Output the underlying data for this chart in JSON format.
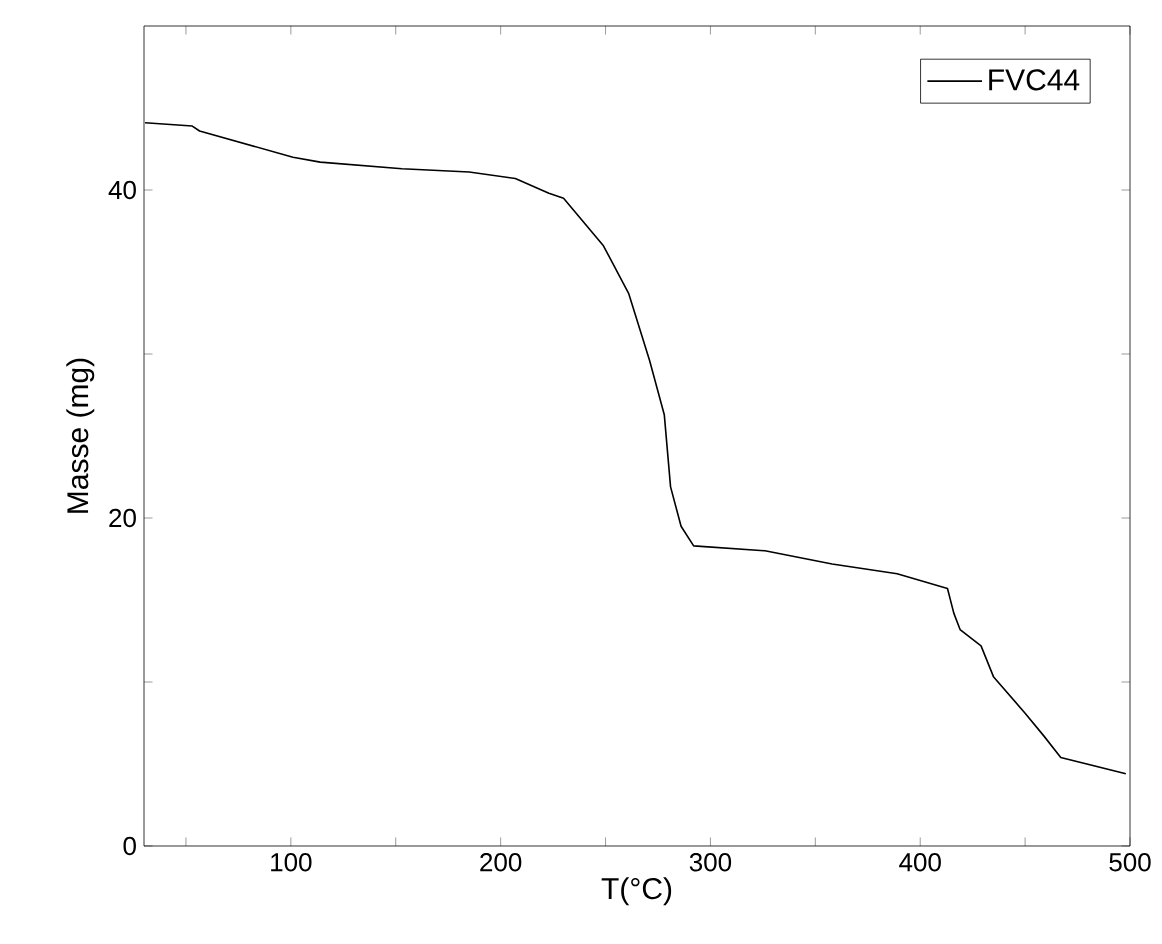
{
  "chart_data": {
    "type": "line",
    "xlabel": "T(°C)",
    "ylabel": "Masse (mg)",
    "xlim": [
      30,
      500
    ],
    "ylim": [
      0,
      50
    ],
    "xticks": [
      {
        "value": 50,
        "label": null
      },
      100,
      {
        "value": 150,
        "label": null
      },
      200,
      {
        "value": 250,
        "label": null
      },
      300,
      {
        "value": 350,
        "label": null
      },
      400,
      {
        "value": 450,
        "label": null
      },
      500
    ],
    "yticks": [
      0,
      {
        "value": 10,
        "label": null
      },
      20,
      {
        "value": 30,
        "label": null
      },
      40
    ],
    "grid": false,
    "legend": "top right",
    "marker": "none",
    "line_style": "solid",
    "series": [
      {
        "name": "FVC44",
        "color": "#000000",
        "x": [
          30.5,
          53,
          56.5,
          101,
          114,
          153,
          185,
          207,
          223,
          230,
          249,
          261,
          271,
          278,
          281,
          286,
          292,
          326,
          358,
          389,
          413,
          416,
          419,
          429,
          435,
          450,
          459,
          467,
          498
        ],
        "values": [
          44.1,
          43.9,
          43.6,
          42.0,
          41.7,
          41.3,
          41.1,
          40.7,
          39.8,
          39.5,
          36.6,
          33.7,
          29.6,
          26.3,
          21.9,
          19.5,
          18.3,
          18.0,
          17.2,
          16.6,
          15.7,
          14.2,
          13.2,
          12.2,
          10.3,
          8.1,
          6.7,
          5.4,
          4.4
        ]
      }
    ]
  }
}
